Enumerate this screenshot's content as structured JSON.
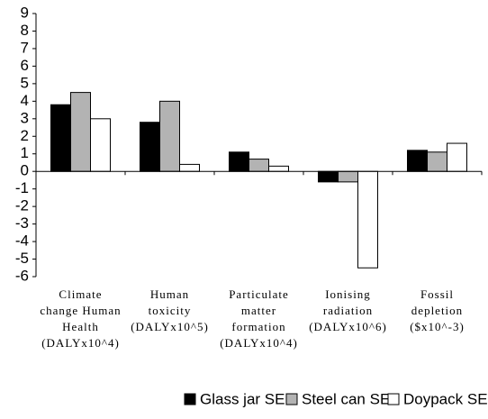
{
  "chart_data": {
    "type": "bar",
    "categories": [
      [
        "Climate",
        "change Human",
        "Health",
        "(DALYx10^4)"
      ],
      [
        "Human",
        "toxicity",
        "(DALYx10^5)"
      ],
      [
        "Particulate",
        "matter",
        "formation",
        "(DALYx10^4)"
      ],
      [
        "Ionising",
        "radiation",
        "(DALYx10^6)"
      ],
      [
        "Fossil",
        "depletion",
        "($x10^-3)"
      ]
    ],
    "series": [
      {
        "name": "Glass jar SE",
        "color": "#000000",
        "values": [
          3.8,
          2.8,
          1.1,
          -0.6,
          1.2
        ]
      },
      {
        "name": "Steel can SE",
        "color": "#b3b3b3",
        "values": [
          4.5,
          4.0,
          0.7,
          -0.6,
          1.1
        ]
      },
      {
        "name": "Doypack SE",
        "color": "#ffffff",
        "values": [
          3.0,
          0.4,
          0.3,
          -5.5,
          1.6
        ]
      }
    ],
    "ylim": [
      -6,
      9
    ],
    "yticks": [
      -6,
      -5,
      -4,
      -3,
      -2,
      -1,
      0,
      1,
      2,
      3,
      4,
      5,
      6,
      7,
      8,
      9
    ],
    "grid": false,
    "legend": "bottom"
  }
}
